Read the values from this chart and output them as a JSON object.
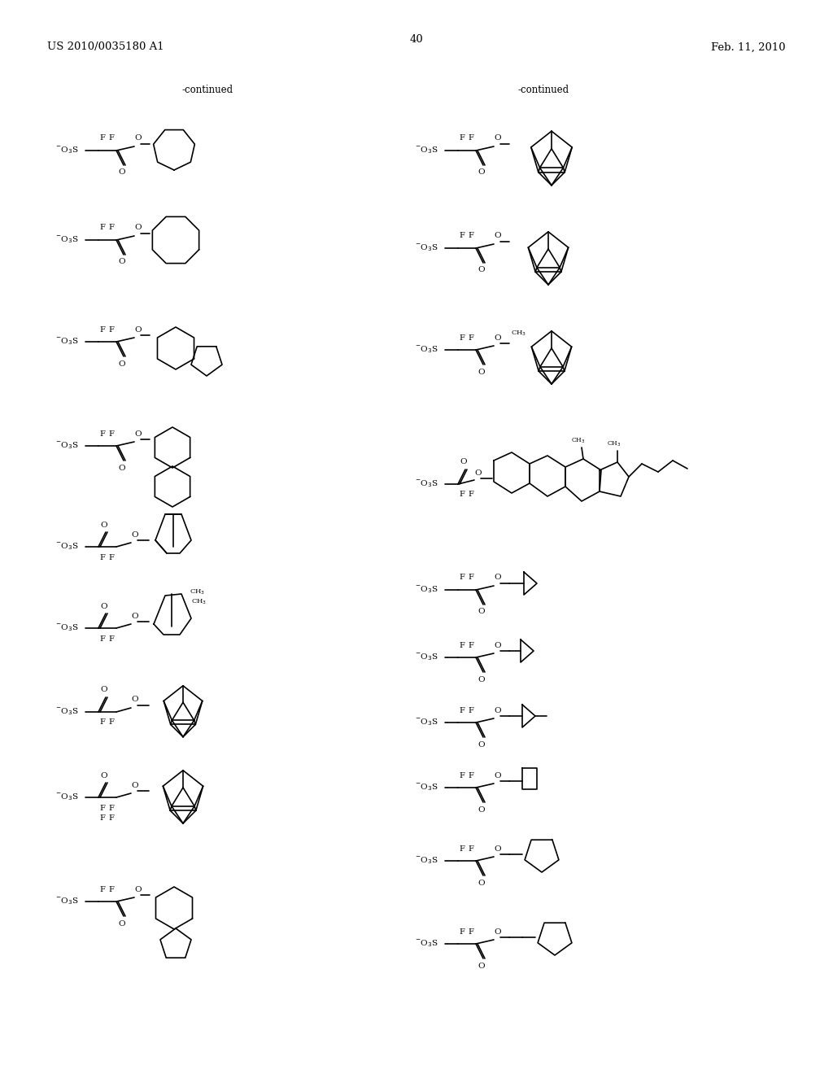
{
  "bg": "#ffffff",
  "header_left": "US 2010/0035180 A1",
  "header_center": "40",
  "header_right": "Feb. 11, 2010",
  "continued": "-continued",
  "lw": 1.2
}
